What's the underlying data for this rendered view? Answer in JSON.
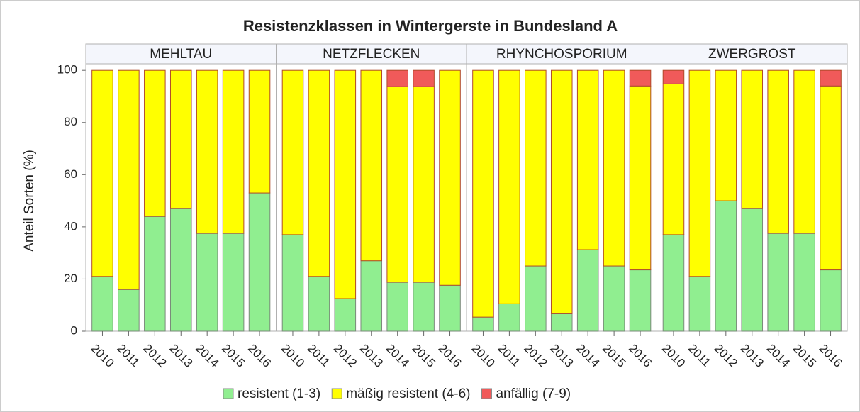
{
  "chart_data": {
    "type": "bar",
    "stacked": true,
    "title": "Resistenzklassen  in Wintergerste in Bundesland A",
    "ylabel": "Anteil Sorten (%)",
    "ylim": [
      0,
      102.5
    ],
    "yticks": [
      0,
      20,
      40,
      60,
      80,
      100
    ],
    "series": [
      {
        "name": "resistent (1-3)",
        "color": "#90ee90"
      },
      {
        "name": "mäßig resistent (4-6)",
        "color": "#ffff00"
      },
      {
        "name": "anfällig (7-9)",
        "color": "#f05a5a"
      }
    ],
    "facets": [
      {
        "name": "MEHLTAU",
        "categories": [
          "2010",
          "2011",
          "2012",
          "2013",
          "2014",
          "2015",
          "2016"
        ],
        "series": [
          {
            "values": [
              21,
              16,
              44,
              47,
              37.5,
              37.5,
              53
            ]
          },
          {
            "values": [
              79,
              84,
              56,
              53,
              62.5,
              62.5,
              47
            ]
          },
          {
            "values": [
              0,
              0,
              0,
              0,
              0,
              0,
              0
            ]
          }
        ]
      },
      {
        "name": "NETZFLECKEN",
        "categories": [
          "2010",
          "2011",
          "2012",
          "2013",
          "2014",
          "2015",
          "2016"
        ],
        "series": [
          {
            "values": [
              37,
              21,
              12.5,
              27,
              18.75,
              18.75,
              17.6
            ]
          },
          {
            "values": [
              63,
              79,
              87.5,
              73,
              75,
              75,
              82.4
            ]
          },
          {
            "values": [
              0,
              0,
              0,
              0,
              6.25,
              6.25,
              0
            ]
          }
        ]
      },
      {
        "name": "RHYNCHOSPORIUM",
        "categories": [
          "2010",
          "2011",
          "2012",
          "2013",
          "2014",
          "2015",
          "2016"
        ],
        "series": [
          {
            "values": [
              5.4,
              10.5,
              25,
              6.7,
              31.25,
              25,
              23.5
            ]
          },
          {
            "values": [
              94.6,
              89.5,
              75,
              93.3,
              68.75,
              75,
              70.5
            ]
          },
          {
            "values": [
              0,
              0,
              0,
              0,
              0,
              0,
              6
            ]
          }
        ]
      },
      {
        "name": "ZWERGROST",
        "categories": [
          "2010",
          "2011",
          "2012",
          "2013",
          "2014",
          "2015",
          "2016"
        ],
        "series": [
          {
            "values": [
              37,
              21,
              50,
              47,
              37.5,
              37.5,
              23.5
            ]
          },
          {
            "values": [
              57.8,
              79,
              50,
              53,
              62.5,
              62.5,
              70.5
            ]
          },
          {
            "values": [
              5.2,
              0,
              0,
              0,
              0,
              0,
              6
            ]
          }
        ]
      }
    ]
  }
}
